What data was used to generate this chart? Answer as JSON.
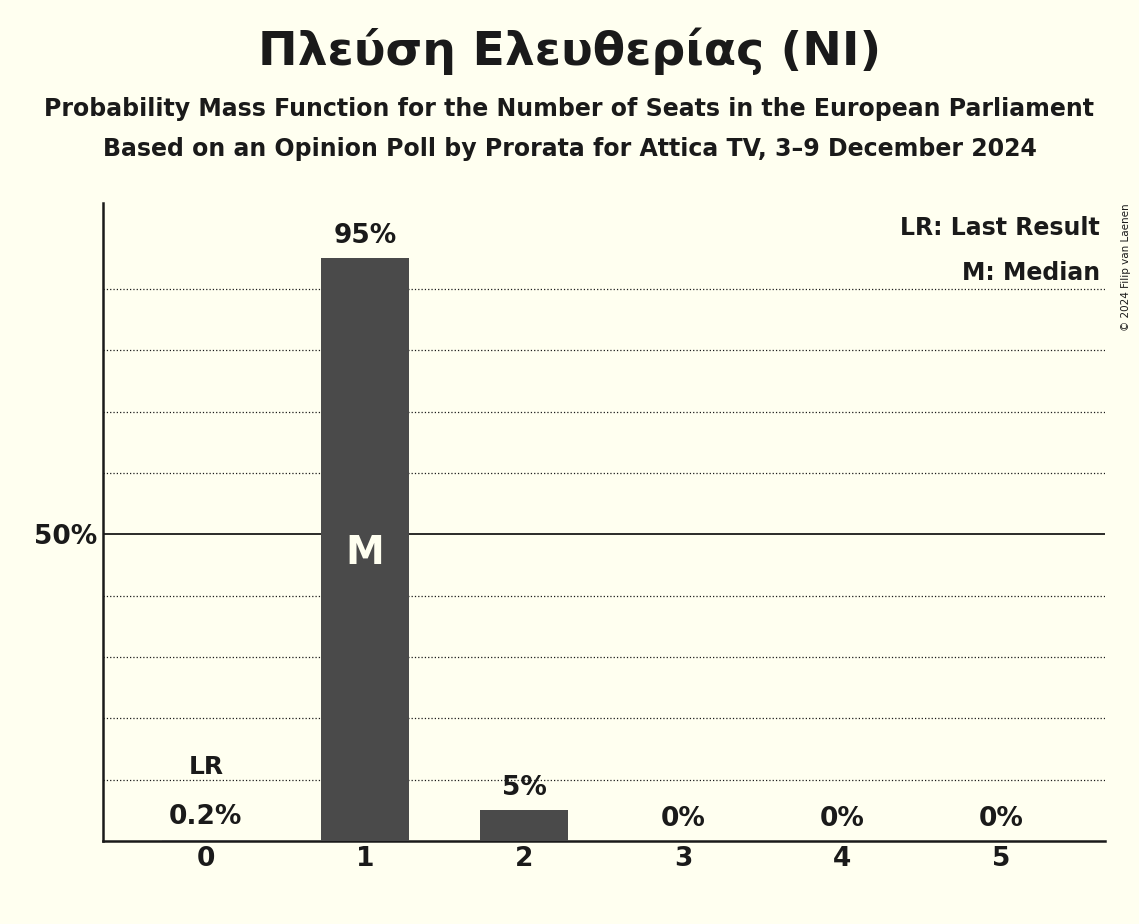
{
  "title": "Πλεύση Ελευθερίας (NI)",
  "subtitle1": "Probability Mass Function for the Number of Seats in the European Parliament",
  "subtitle2": "Based on an Opinion Poll by Prorata for Attica TV, 3–9 December 2024",
  "copyright": "© 2024 Filip van Laenen",
  "categories": [
    0,
    1,
    2,
    3,
    4,
    5
  ],
  "values": [
    0.2,
    95.0,
    5.0,
    0.0,
    0.0,
    0.0
  ],
  "bar_color": "#4a4a4a",
  "background_color": "#fffff0",
  "text_color": "#1a1a1a",
  "median_seat": 1,
  "last_result_seat": 0,
  "median_label": "M",
  "lr_label": "LR",
  "lr_value_label": "0.2%",
  "legend_lr": "LR: Last Result",
  "legend_m": "M: Median",
  "ylim": [
    0,
    104
  ],
  "ylabel_50": "50%",
  "bar_width": 0.55,
  "title_fontsize": 34,
  "subtitle_fontsize": 17,
  "tick_fontsize": 19,
  "annotation_fontsize": 19,
  "legend_fontsize": 17,
  "median_fontsize": 28,
  "lr_fontsize": 18,
  "pct_labels": [
    "0.2%",
    "95%",
    "5%",
    "0%",
    "0%",
    "0%"
  ],
  "grid_lines": [
    10,
    20,
    30,
    40,
    60,
    70,
    80,
    90
  ]
}
